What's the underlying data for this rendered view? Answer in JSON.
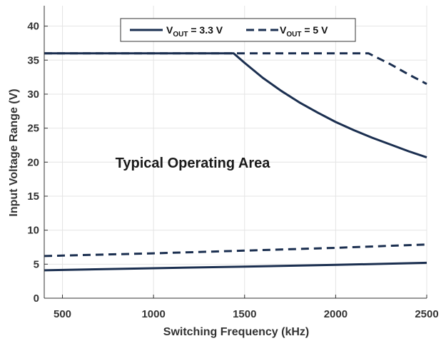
{
  "chart_data": {
    "type": "line",
    "xlabel": "Switching Frequency (kHz)",
    "ylabel": "Input Voltage Range (V)",
    "xlim": [
      400,
      2500
    ],
    "ylim": [
      0,
      43
    ],
    "x_ticks": [
      500,
      1000,
      1500,
      2000,
      2500
    ],
    "y_ticks": [
      0,
      5,
      10,
      15,
      20,
      25,
      30,
      35,
      40
    ],
    "grid": true,
    "legend_position": "top-center",
    "annotation": "Typical Operating Area",
    "legend": [
      {
        "prefix": "V",
        "subscript": "OUT",
        "suffix": " = 3.3 V",
        "style": "solid"
      },
      {
        "prefix": "V",
        "subscript": "OUT",
        "suffix": " = 5 V",
        "style": "dashed"
      }
    ],
    "series": [
      {
        "legend_index": 0,
        "bound": "max",
        "style": "solid",
        "color": "#1b2f50",
        "points": [
          [
            400,
            36
          ],
          [
            1440,
            36
          ],
          [
            1500,
            34.6
          ],
          [
            1600,
            32.4
          ],
          [
            1700,
            30.5
          ],
          [
            1800,
            28.8
          ],
          [
            1900,
            27.3
          ],
          [
            2000,
            25.9
          ],
          [
            2100,
            24.7
          ],
          [
            2200,
            23.6
          ],
          [
            2300,
            22.6
          ],
          [
            2400,
            21.6
          ],
          [
            2500,
            20.7
          ]
        ]
      },
      {
        "legend_index": 1,
        "bound": "max",
        "style": "dashed",
        "color": "#1b2f50",
        "points": [
          [
            400,
            36
          ],
          [
            2180,
            36
          ],
          [
            2300,
            34.4
          ],
          [
            2400,
            32.9
          ],
          [
            2500,
            31.5
          ]
        ]
      },
      {
        "legend_index": 0,
        "bound": "min",
        "style": "solid",
        "color": "#1b2f50",
        "points": [
          [
            400,
            4.1
          ],
          [
            1000,
            4.4
          ],
          [
            1500,
            4.65
          ],
          [
            2000,
            4.9
          ],
          [
            2500,
            5.2
          ]
        ]
      },
      {
        "legend_index": 1,
        "bound": "min",
        "style": "dashed",
        "color": "#1b2f50",
        "points": [
          [
            400,
            6.2
          ],
          [
            1000,
            6.6
          ],
          [
            1500,
            7.0
          ],
          [
            2000,
            7.4
          ],
          [
            2500,
            7.9
          ]
        ]
      }
    ]
  }
}
